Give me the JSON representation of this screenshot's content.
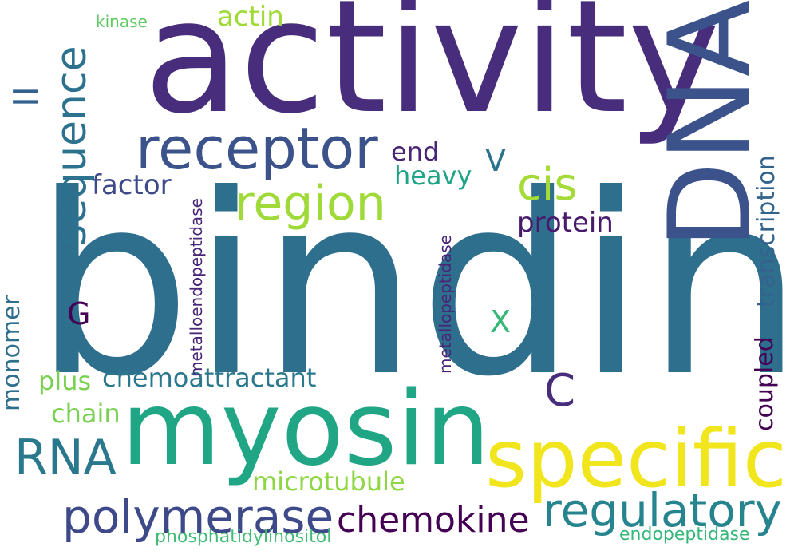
{
  "words": {
    "binding": {
      "text": "binding",
      "color": "#2e6f8e"
    },
    "activity": {
      "text": "activity",
      "color": "#472d7b"
    },
    "dna": {
      "text": "DNA",
      "color": "#3b528b"
    },
    "myosin": {
      "text": "myosin",
      "color": "#21a685"
    },
    "specific": {
      "text": "specific",
      "color": "#f1e51d"
    },
    "receptor": {
      "text": "receptor",
      "color": "#3b528b"
    },
    "region": {
      "text": "region",
      "color": "#a0da39"
    },
    "sequence": {
      "text": "sequence",
      "color": "#2c728e"
    },
    "regulatory": {
      "text": "regulatory",
      "color": "#25848e"
    },
    "polymerase": {
      "text": "polymerase",
      "color": "#3e4989"
    },
    "rna": {
      "text": "RNA",
      "color": "#2a788e"
    },
    "chemokine": {
      "text": "chemokine",
      "color": "#440154"
    },
    "cis": {
      "text": "cis",
      "color": "#a5db36"
    },
    "transcription": {
      "text": "transcription",
      "color": "#33638d"
    },
    "chemoattractant": {
      "text": "chemoattractant",
      "color": "#2a788e"
    },
    "c": {
      "text": "C",
      "color": "#472d7b"
    },
    "coupled": {
      "text": "coupled",
      "color": "#440154"
    },
    "monomer": {
      "text": "monomer",
      "color": "#2e6f8e"
    },
    "microtubule": {
      "text": "microtubule",
      "color": "#8fd744"
    },
    "protein": {
      "text": "protein",
      "color": "#481a6c"
    },
    "ii": {
      "text": "II",
      "color": "#33638d"
    },
    "factor": {
      "text": "factor",
      "color": "#3e4989"
    },
    "heavy": {
      "text": "heavy",
      "color": "#20a386"
    },
    "actin": {
      "text": "actin",
      "color": "#a0da39"
    },
    "end": {
      "text": "end",
      "color": "#482576"
    },
    "v": {
      "text": "V",
      "color": "#2c728e"
    },
    "x": {
      "text": "X",
      "color": "#35b779"
    },
    "g": {
      "text": "G",
      "color": "#440154"
    },
    "plus": {
      "text": "plus",
      "color": "#7ad151"
    },
    "chain": {
      "text": "chain",
      "color": "#7ad151"
    },
    "kinase": {
      "text": "kinase",
      "color": "#5ec962"
    },
    "metalloendopeptidase": {
      "text": "metalloendopeptidase",
      "color": "#482576"
    },
    "metallopeptidase": {
      "text": "metallopeptidase",
      "color": "#482576"
    },
    "phosphatidylinositol": {
      "text": "phosphatidylinositol",
      "color": "#3fbc73"
    },
    "endopeptidase": {
      "text": "endopeptidase",
      "color": "#35b779"
    }
  }
}
